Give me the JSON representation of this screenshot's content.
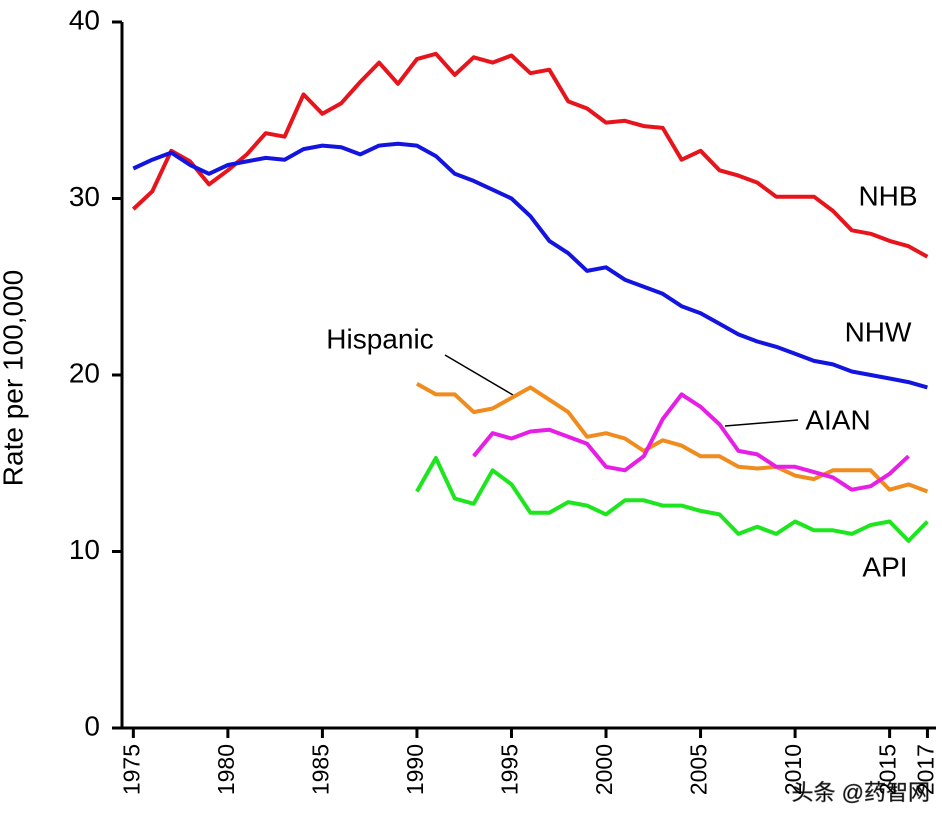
{
  "chart_data": {
    "type": "line",
    "y_label": "Rate per 100,000",
    "x": [
      1975,
      1976,
      1977,
      1978,
      1979,
      1980,
      1981,
      1982,
      1983,
      1984,
      1985,
      1986,
      1987,
      1988,
      1989,
      1990,
      1991,
      1992,
      1993,
      1994,
      1995,
      1996,
      1997,
      1998,
      1999,
      2000,
      2001,
      2002,
      2003,
      2004,
      2005,
      2006,
      2007,
      2008,
      2009,
      2010,
      2011,
      2012,
      2013,
      2014,
      2015,
      2016,
      2017
    ],
    "series": [
      {
        "name": "NHB",
        "color": "#e8141c",
        "values": [
          29.4,
          30.4,
          32.7,
          32.1,
          30.8,
          31.6,
          32.5,
          33.7,
          33.5,
          35.9,
          34.8,
          35.4,
          36.6,
          37.7,
          36.5,
          37.9,
          38.2,
          37.0,
          38.0,
          37.7,
          38.1,
          37.1,
          37.3,
          35.5,
          35.1,
          34.3,
          34.4,
          34.1,
          34.0,
          32.2,
          32.7,
          31.6,
          31.3,
          30.9,
          30.1,
          30.1,
          30.1,
          29.3,
          28.2,
          28.0,
          27.6,
          27.3,
          26.7
        ]
      },
      {
        "name": "NHW",
        "color": "#1414e0",
        "values": [
          31.7,
          32.2,
          32.6,
          31.9,
          31.4,
          31.9,
          32.1,
          32.3,
          32.2,
          32.8,
          33.0,
          32.9,
          32.5,
          33.0,
          33.1,
          33.0,
          32.4,
          31.4,
          31.0,
          30.5,
          30.0,
          29.0,
          27.6,
          26.9,
          25.9,
          26.1,
          25.4,
          25.0,
          24.6,
          23.9,
          23.5,
          22.9,
          22.3,
          21.9,
          21.6,
          21.2,
          20.8,
          20.6,
          20.2,
          20.0,
          19.8,
          19.6,
          19.3
        ]
      },
      {
        "name": "Hispanic",
        "color": "#f08c1e",
        "values": [
          null,
          null,
          null,
          null,
          null,
          null,
          null,
          null,
          null,
          null,
          null,
          null,
          null,
          null,
          null,
          19.5,
          18.9,
          18.9,
          17.9,
          18.1,
          18.7,
          19.3,
          18.6,
          17.9,
          16.5,
          16.7,
          16.4,
          15.7,
          16.3,
          16.0,
          15.4,
          15.4,
          14.8,
          14.7,
          14.8,
          14.3,
          14.1,
          14.6,
          14.6,
          14.6,
          13.5,
          13.8,
          13.4
        ]
      },
      {
        "name": "AIAN",
        "color": "#e61ee6",
        "values": [
          null,
          null,
          null,
          null,
          null,
          null,
          null,
          null,
          null,
          null,
          null,
          null,
          null,
          null,
          null,
          null,
          null,
          null,
          15.4,
          16.7,
          16.4,
          16.8,
          16.9,
          16.5,
          16.1,
          14.8,
          14.6,
          15.4,
          17.5,
          18.9,
          18.2,
          17.2,
          15.7,
          15.5,
          14.8,
          14.8,
          14.5,
          14.2,
          13.5,
          13.7,
          14.4,
          15.4,
          null
        ]
      },
      {
        "name": "API",
        "color": "#1ee61e",
        "values": [
          null,
          null,
          null,
          null,
          null,
          null,
          null,
          null,
          null,
          null,
          null,
          null,
          null,
          null,
          null,
          13.4,
          15.3,
          13.0,
          12.7,
          14.6,
          13.8,
          12.2,
          12.2,
          12.8,
          12.6,
          12.1,
          12.9,
          12.9,
          12.6,
          12.6,
          12.3,
          12.1,
          11.0,
          11.4,
          11.0,
          11.7,
          11.2,
          11.2,
          11.0,
          11.5,
          11.7,
          10.6,
          11.7
        ]
      }
    ],
    "xlim": [
      1974.4,
      2017.4
    ],
    "xticks": [
      1975,
      1980,
      1985,
      1990,
      1995,
      2000,
      2005,
      2010,
      2015,
      2017
    ],
    "ylim": [
      0,
      40
    ],
    "yticks": [
      0,
      10,
      20,
      30,
      40
    ],
    "grid": false,
    "watermark": "头条 @药智网"
  }
}
